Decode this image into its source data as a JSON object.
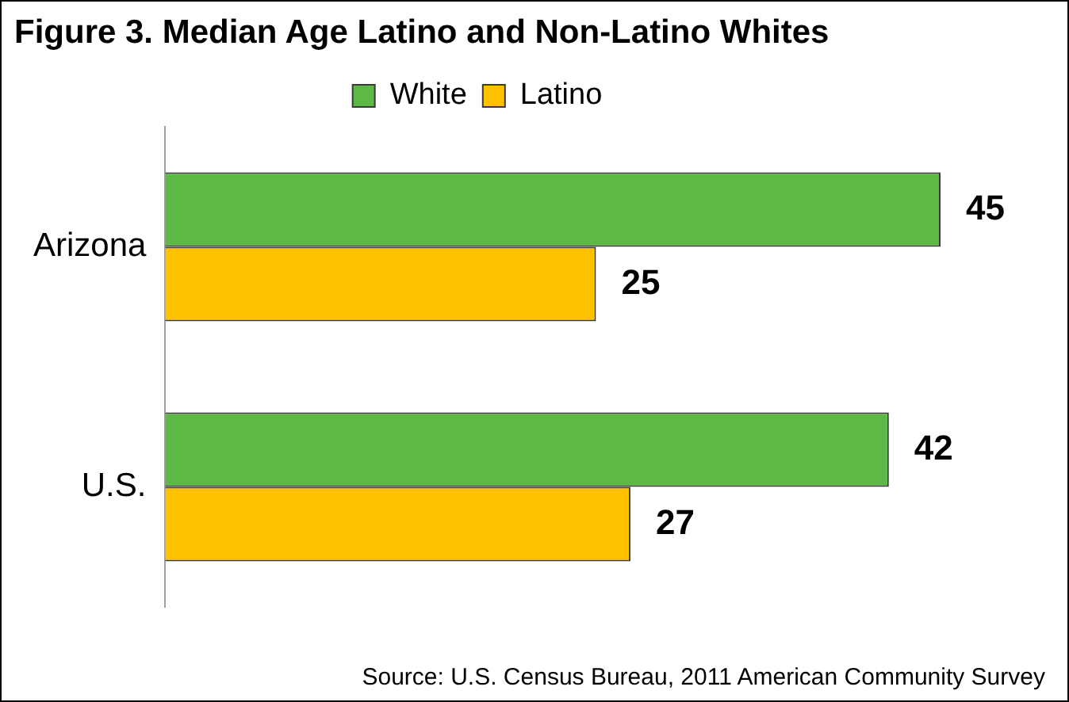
{
  "chart_data": {
    "type": "bar",
    "orientation": "horizontal",
    "title": "Figure 3. Median Age Latino and Non-Latino Whites",
    "categories": [
      "Arizona",
      "U.S."
    ],
    "series": [
      {
        "name": "White",
        "color": "#5cb946",
        "values": [
          45,
          42
        ]
      },
      {
        "name": "Latino",
        "color": "#ffc000",
        "values": [
          25,
          27
        ]
      }
    ],
    "tick_labels": "y",
    "data_labels": true,
    "legend": "top",
    "annotations": [
      "Source: U.S. Census Bureau, 2011 American Community Survey"
    ]
  }
}
